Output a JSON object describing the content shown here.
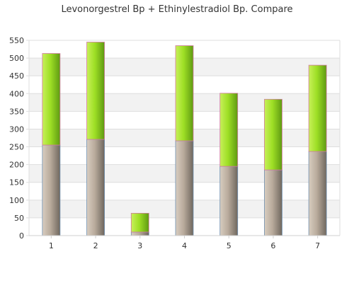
{
  "chart_data": {
    "type": "bar",
    "stacked": true,
    "title": "Levonorgestrel Bp + Ethinylestradiol Bp. Compare",
    "xlabel": "",
    "ylabel": "",
    "categories": [
      "1",
      "2",
      "3",
      "4",
      "5",
      "6",
      "7"
    ],
    "series": [
      {
        "values": [
          255,
          271,
          10,
          267,
          195,
          185,
          237
        ],
        "color": "#b8aa9b"
      },
      {
        "values": [
          258,
          274,
          53,
          268,
          206,
          199,
          243
        ],
        "color": "#9ee02a"
      }
    ],
    "ylim": [
      0,
      550
    ],
    "yticks": [
      0,
      50,
      100,
      150,
      200,
      250,
      300,
      350,
      400,
      450,
      500,
      550
    ],
    "grid": true,
    "band_colors": [
      "#ffffff",
      "#f2f2f2"
    ],
    "legend": "none"
  }
}
